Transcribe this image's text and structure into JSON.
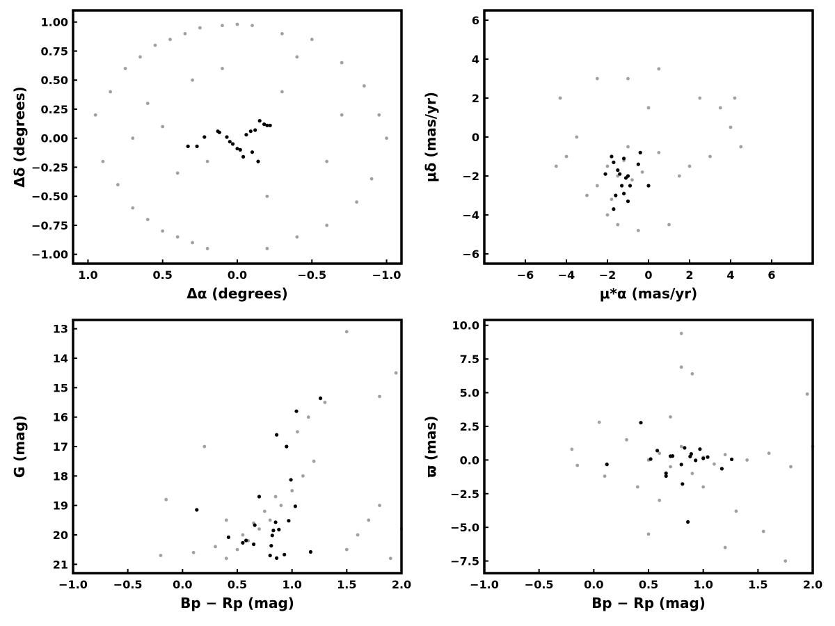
{
  "chart_data": [
    {
      "type": "scatter",
      "id": "sky",
      "xlabel": "Δα (degrees)",
      "ylabel": "Δδ (degrees)",
      "xlim": [
        1.1,
        -1.1
      ],
      "ylim": [
        -1.08,
        1.1
      ],
      "x_inverted": true,
      "xticks": [
        1.0,
        0.5,
        0.0,
        -0.5,
        -1.0
      ],
      "xtick_labels": [
        "1.0",
        "0.5",
        "0.0",
        "−0.5",
        "−1.0"
      ],
      "yticks": [
        1.0,
        0.75,
        0.5,
        0.25,
        0.0,
        -0.25,
        -0.5,
        -0.75,
        -1.0
      ],
      "ytick_labels": [
        "1.00",
        "0.75",
        "0.50",
        "0.25",
        "0.00",
        "−0.25",
        "−0.50",
        "−0.75",
        "−1.00"
      ],
      "series": [
        {
          "color": "#a0a0a0",
          "points": [
            [
              0.95,
              0.2
            ],
            [
              0.9,
              -0.2
            ],
            [
              0.85,
              0.4
            ],
            [
              0.8,
              -0.4
            ],
            [
              0.75,
              0.6
            ],
            [
              0.7,
              -0.6
            ],
            [
              0.65,
              0.7
            ],
            [
              0.6,
              -0.7
            ],
            [
              0.55,
              0.8
            ],
            [
              0.5,
              -0.8
            ],
            [
              0.45,
              0.85
            ],
            [
              0.4,
              -0.85
            ],
            [
              0.35,
              0.9
            ],
            [
              0.3,
              -0.9
            ],
            [
              0.25,
              0.95
            ],
            [
              0.2,
              -0.95
            ],
            [
              0.1,
              0.97
            ],
            [
              0.0,
              0.98
            ],
            [
              -0.1,
              0.97
            ],
            [
              -0.2,
              -0.95
            ],
            [
              -0.3,
              0.9
            ],
            [
              -0.4,
              -0.85
            ],
            [
              -0.5,
              0.85
            ],
            [
              -0.6,
              -0.75
            ],
            [
              -0.7,
              0.65
            ],
            [
              -0.8,
              -0.55
            ],
            [
              -0.85,
              0.45
            ],
            [
              -0.9,
              -0.35
            ],
            [
              -0.95,
              0.2
            ],
            [
              -1.0,
              0.0
            ],
            [
              0.6,
              0.3
            ],
            [
              0.3,
              0.5
            ],
            [
              -0.3,
              0.4
            ],
            [
              -0.6,
              -0.2
            ],
            [
              0.4,
              -0.3
            ],
            [
              0.1,
              0.6
            ],
            [
              -0.2,
              -0.5
            ],
            [
              0.7,
              0.0
            ],
            [
              -0.7,
              0.2
            ],
            [
              0.2,
              -0.2
            ],
            [
              -0.4,
              0.7
            ],
            [
              0.5,
              0.1
            ]
          ]
        },
        {
          "color": "#000000",
          "points": [
            [
              0.33,
              -0.07
            ],
            [
              0.27,
              -0.07
            ],
            [
              0.22,
              0.01
            ],
            [
              0.13,
              0.06
            ],
            [
              0.12,
              0.05
            ],
            [
              0.07,
              0.01
            ],
            [
              0.05,
              -0.03
            ],
            [
              0.03,
              -0.05
            ],
            [
              0.0,
              -0.09
            ],
            [
              -0.02,
              -0.1
            ],
            [
              -0.04,
              -0.16
            ],
            [
              -0.06,
              0.03
            ],
            [
              -0.09,
              0.06
            ],
            [
              -0.12,
              0.07
            ],
            [
              -0.14,
              -0.2
            ],
            [
              -0.15,
              0.15
            ],
            [
              -0.18,
              0.12
            ],
            [
              -0.2,
              0.11
            ],
            [
              -0.22,
              0.11
            ],
            [
              -0.1,
              -0.12
            ]
          ]
        }
      ]
    },
    {
      "type": "scatter",
      "id": "pm",
      "xlabel": "μ*α  (mas/yr)",
      "ylabel": "μδ (mas/yr)",
      "xlim": [
        -8,
        8
      ],
      "ylim": [
        -6.5,
        6.5
      ],
      "xticks": [
        -6,
        -4,
        -2,
        0,
        2,
        4,
        6
      ],
      "xtick_labels": [
        "−6",
        "−4",
        "−2",
        "0",
        "2",
        "4",
        "6"
      ],
      "yticks": [
        6,
        4,
        2,
        0,
        -2,
        -4,
        -6
      ],
      "ytick_labels": [
        "6",
        "4",
        "2",
        "0",
        "−2",
        "−4",
        "−6"
      ],
      "series": [
        {
          "color": "#a0a0a0",
          "points": [
            [
              -4.5,
              -1.5
            ],
            [
              -4.3,
              2.0
            ],
            [
              -4.0,
              -1.0
            ],
            [
              -3.5,
              0.0
            ],
            [
              -3.0,
              -3.0
            ],
            [
              -2.5,
              3.0
            ],
            [
              -2.0,
              -4.0
            ],
            [
              -1.5,
              -4.5
            ],
            [
              -1.0,
              3.0
            ],
            [
              -0.5,
              -4.8
            ],
            [
              0.0,
              1.5
            ],
            [
              0.5,
              3.5
            ],
            [
              1.0,
              -4.5
            ],
            [
              1.5,
              -2.0
            ],
            [
              2.0,
              -1.5
            ],
            [
              2.5,
              2.0
            ],
            [
              3.0,
              -1.0
            ],
            [
              3.5,
              1.5
            ],
            [
              4.0,
              0.5
            ],
            [
              4.2,
              2.0
            ],
            [
              4.5,
              -0.5
            ],
            [
              -1.2,
              -1.2
            ],
            [
              -1.5,
              -2.0
            ],
            [
              -0.8,
              -2.2
            ],
            [
              -2.0,
              -1.5
            ],
            [
              -1.0,
              -0.5
            ],
            [
              -0.3,
              -1.8
            ],
            [
              -2.5,
              -2.5
            ],
            [
              -1.8,
              -3.2
            ],
            [
              0.5,
              -0.8
            ]
          ]
        },
        {
          "color": "#000000",
          "points": [
            [
              -1.8,
              -1.0
            ],
            [
              -1.7,
              -1.3
            ],
            [
              -1.5,
              -1.7
            ],
            [
              -1.4,
              -1.9
            ],
            [
              -1.3,
              -2.5
            ],
            [
              -1.2,
              -1.1
            ],
            [
              -1.1,
              -2.1
            ],
            [
              -1.0,
              -2.0
            ],
            [
              -0.9,
              -2.5
            ],
            [
              -1.6,
              -3.0
            ],
            [
              -1.7,
              -3.7
            ],
            [
              -1.0,
              -3.3
            ],
            [
              -0.5,
              -1.4
            ],
            [
              -0.4,
              -0.8
            ],
            [
              0.0,
              -2.5
            ],
            [
              -2.1,
              -1.9
            ],
            [
              -1.2,
              -2.9
            ]
          ]
        }
      ]
    },
    {
      "type": "scatter",
      "id": "cmd",
      "xlabel": "Bp − Rp (mag)",
      "ylabel": "G (mag)",
      "xlim": [
        -1.0,
        2.0
      ],
      "ylim": [
        21.3,
        12.7
      ],
      "y_inverted": true,
      "xticks": [
        -1.0,
        -0.5,
        0.0,
        0.5,
        1.0,
        1.5,
        2.0
      ],
      "xtick_labels": [
        "−1.0",
        "−0.5",
        "0.0",
        "0.5",
        "1.0",
        "1.5",
        "2.0"
      ],
      "yticks": [
        21,
        20,
        19,
        18,
        17,
        16,
        15,
        14,
        13
      ],
      "ytick_labels": [
        "21",
        "20",
        "19",
        "18",
        "17",
        "16",
        "15",
        "14",
        "13"
      ],
      "series": [
        {
          "color": "#a0a0a0",
          "points": [
            [
              0.5,
              20.5
            ],
            [
              0.6,
              20.2
            ],
            [
              0.7,
              19.8
            ],
            [
              0.8,
              19.5
            ],
            [
              0.9,
              19.0
            ],
            [
              1.0,
              18.5
            ],
            [
              1.1,
              18.0
            ],
            [
              1.2,
              17.5
            ],
            [
              0.4,
              20.8
            ],
            [
              0.3,
              20.4
            ],
            [
              0.55,
              20.0
            ],
            [
              0.65,
              19.6
            ],
            [
              0.75,
              19.2
            ],
            [
              0.85,
              18.7
            ],
            [
              0.95,
              17.0
            ],
            [
              1.05,
              16.5
            ],
            [
              1.15,
              16.0
            ],
            [
              1.3,
              15.5
            ],
            [
              1.5,
              20.5
            ],
            [
              1.6,
              20.0
            ],
            [
              1.7,
              19.5
            ],
            [
              1.8,
              19.0
            ],
            [
              1.9,
              20.8
            ],
            [
              2.0,
              19.8
            ],
            [
              -0.2,
              20.7
            ],
            [
              -0.15,
              18.8
            ],
            [
              0.1,
              20.6
            ],
            [
              0.2,
              17.0
            ],
            [
              1.8,
              15.3
            ],
            [
              1.95,
              14.5
            ],
            [
              1.5,
              13.1
            ],
            [
              0.4,
              19.5
            ]
          ]
        },
        {
          "color": "#000000",
          "points": [
            [
              0.13,
              19.15
            ],
            [
              0.42,
              20.08
            ],
            [
              0.55,
              20.27
            ],
            [
              0.58,
              20.19
            ],
            [
              0.65,
              20.32
            ],
            [
              0.66,
              19.67
            ],
            [
              0.7,
              18.7
            ],
            [
              0.8,
              20.7
            ],
            [
              0.81,
              20.37
            ],
            [
              0.82,
              20.02
            ],
            [
              0.83,
              19.85
            ],
            [
              0.85,
              19.57
            ],
            [
              0.86,
              20.79
            ],
            [
              0.88,
              19.82
            ],
            [
              0.93,
              20.67
            ],
            [
              0.95,
              17.0
            ],
            [
              0.97,
              19.52
            ],
            [
              0.99,
              18.13
            ],
            [
              1.03,
              19.03
            ],
            [
              1.04,
              15.8
            ],
            [
              1.17,
              20.58
            ],
            [
              1.26,
              15.36
            ],
            [
              0.86,
              16.6
            ]
          ]
        }
      ]
    },
    {
      "type": "scatter",
      "id": "plx",
      "xlabel": "Bp − Rp (mag)",
      "ylabel": "ϖ (mas)",
      "xlim": [
        -1.0,
        2.0
      ],
      "ylim": [
        -8.4,
        10.4
      ],
      "xticks": [
        -1.0,
        -0.5,
        0.0,
        0.5,
        1.0,
        1.5,
        2.0
      ],
      "xtick_labels": [
        "−1.0",
        "−0.5",
        "0.0",
        "0.5",
        "1.0",
        "1.5",
        "2.0"
      ],
      "yticks": [
        10.0,
        7.5,
        5.0,
        2.5,
        0.0,
        -2.5,
        -5.0,
        -7.5
      ],
      "ytick_labels": [
        "10.0",
        "7.5",
        "5.0",
        "2.5",
        "0.0",
        "−2.5",
        "−5.0",
        "−7.5"
      ],
      "series": [
        {
          "color": "#a0a0a0",
          "points": [
            [
              0.5,
              0.0
            ],
            [
              0.6,
              0.5
            ],
            [
              0.7,
              -0.5
            ],
            [
              0.8,
              1.0
            ],
            [
              0.9,
              -1.0
            ],
            [
              1.0,
              0.2
            ],
            [
              1.1,
              -0.3
            ],
            [
              1.2,
              0.4
            ],
            [
              1.4,
              0.0
            ],
            [
              1.6,
              0.5
            ],
            [
              1.8,
              -0.5
            ],
            [
              2.0,
              1.0
            ],
            [
              0.3,
              1.5
            ],
            [
              0.4,
              -2.0
            ],
            [
              0.6,
              -3.0
            ],
            [
              0.8,
              9.4
            ],
            [
              0.8,
              6.9
            ],
            [
              0.9,
              6.4
            ],
            [
              1.2,
              -6.5
            ],
            [
              1.55,
              -5.3
            ],
            [
              1.75,
              -7.5
            ],
            [
              1.95,
              4.9
            ],
            [
              -0.2,
              0.8
            ],
            [
              -0.15,
              -0.4
            ],
            [
              0.05,
              2.8
            ],
            [
              0.1,
              -1.2
            ],
            [
              1.3,
              -3.8
            ],
            [
              0.5,
              -5.5
            ],
            [
              0.7,
              3.2
            ],
            [
              1.0,
              -2.0
            ]
          ]
        },
        {
          "color": "#000000",
          "points": [
            [
              0.12,
              -0.32
            ],
            [
              0.43,
              2.77
            ],
            [
              0.52,
              0.07
            ],
            [
              0.58,
              0.7
            ],
            [
              0.66,
              -0.98
            ],
            [
              0.7,
              0.28
            ],
            [
              0.72,
              0.3
            ],
            [
              0.8,
              -0.33
            ],
            [
              0.81,
              -1.78
            ],
            [
              0.83,
              0.9
            ],
            [
              0.86,
              -4.6
            ],
            [
              0.89,
              0.45
            ],
            [
              0.93,
              -0.03
            ],
            [
              0.97,
              0.81
            ],
            [
              1.0,
              0.12
            ],
            [
              1.04,
              0.22
            ],
            [
              1.17,
              -0.65
            ],
            [
              1.26,
              0.05
            ],
            [
              0.66,
              -1.19
            ],
            [
              0.88,
              0.26
            ]
          ]
        }
      ]
    }
  ]
}
